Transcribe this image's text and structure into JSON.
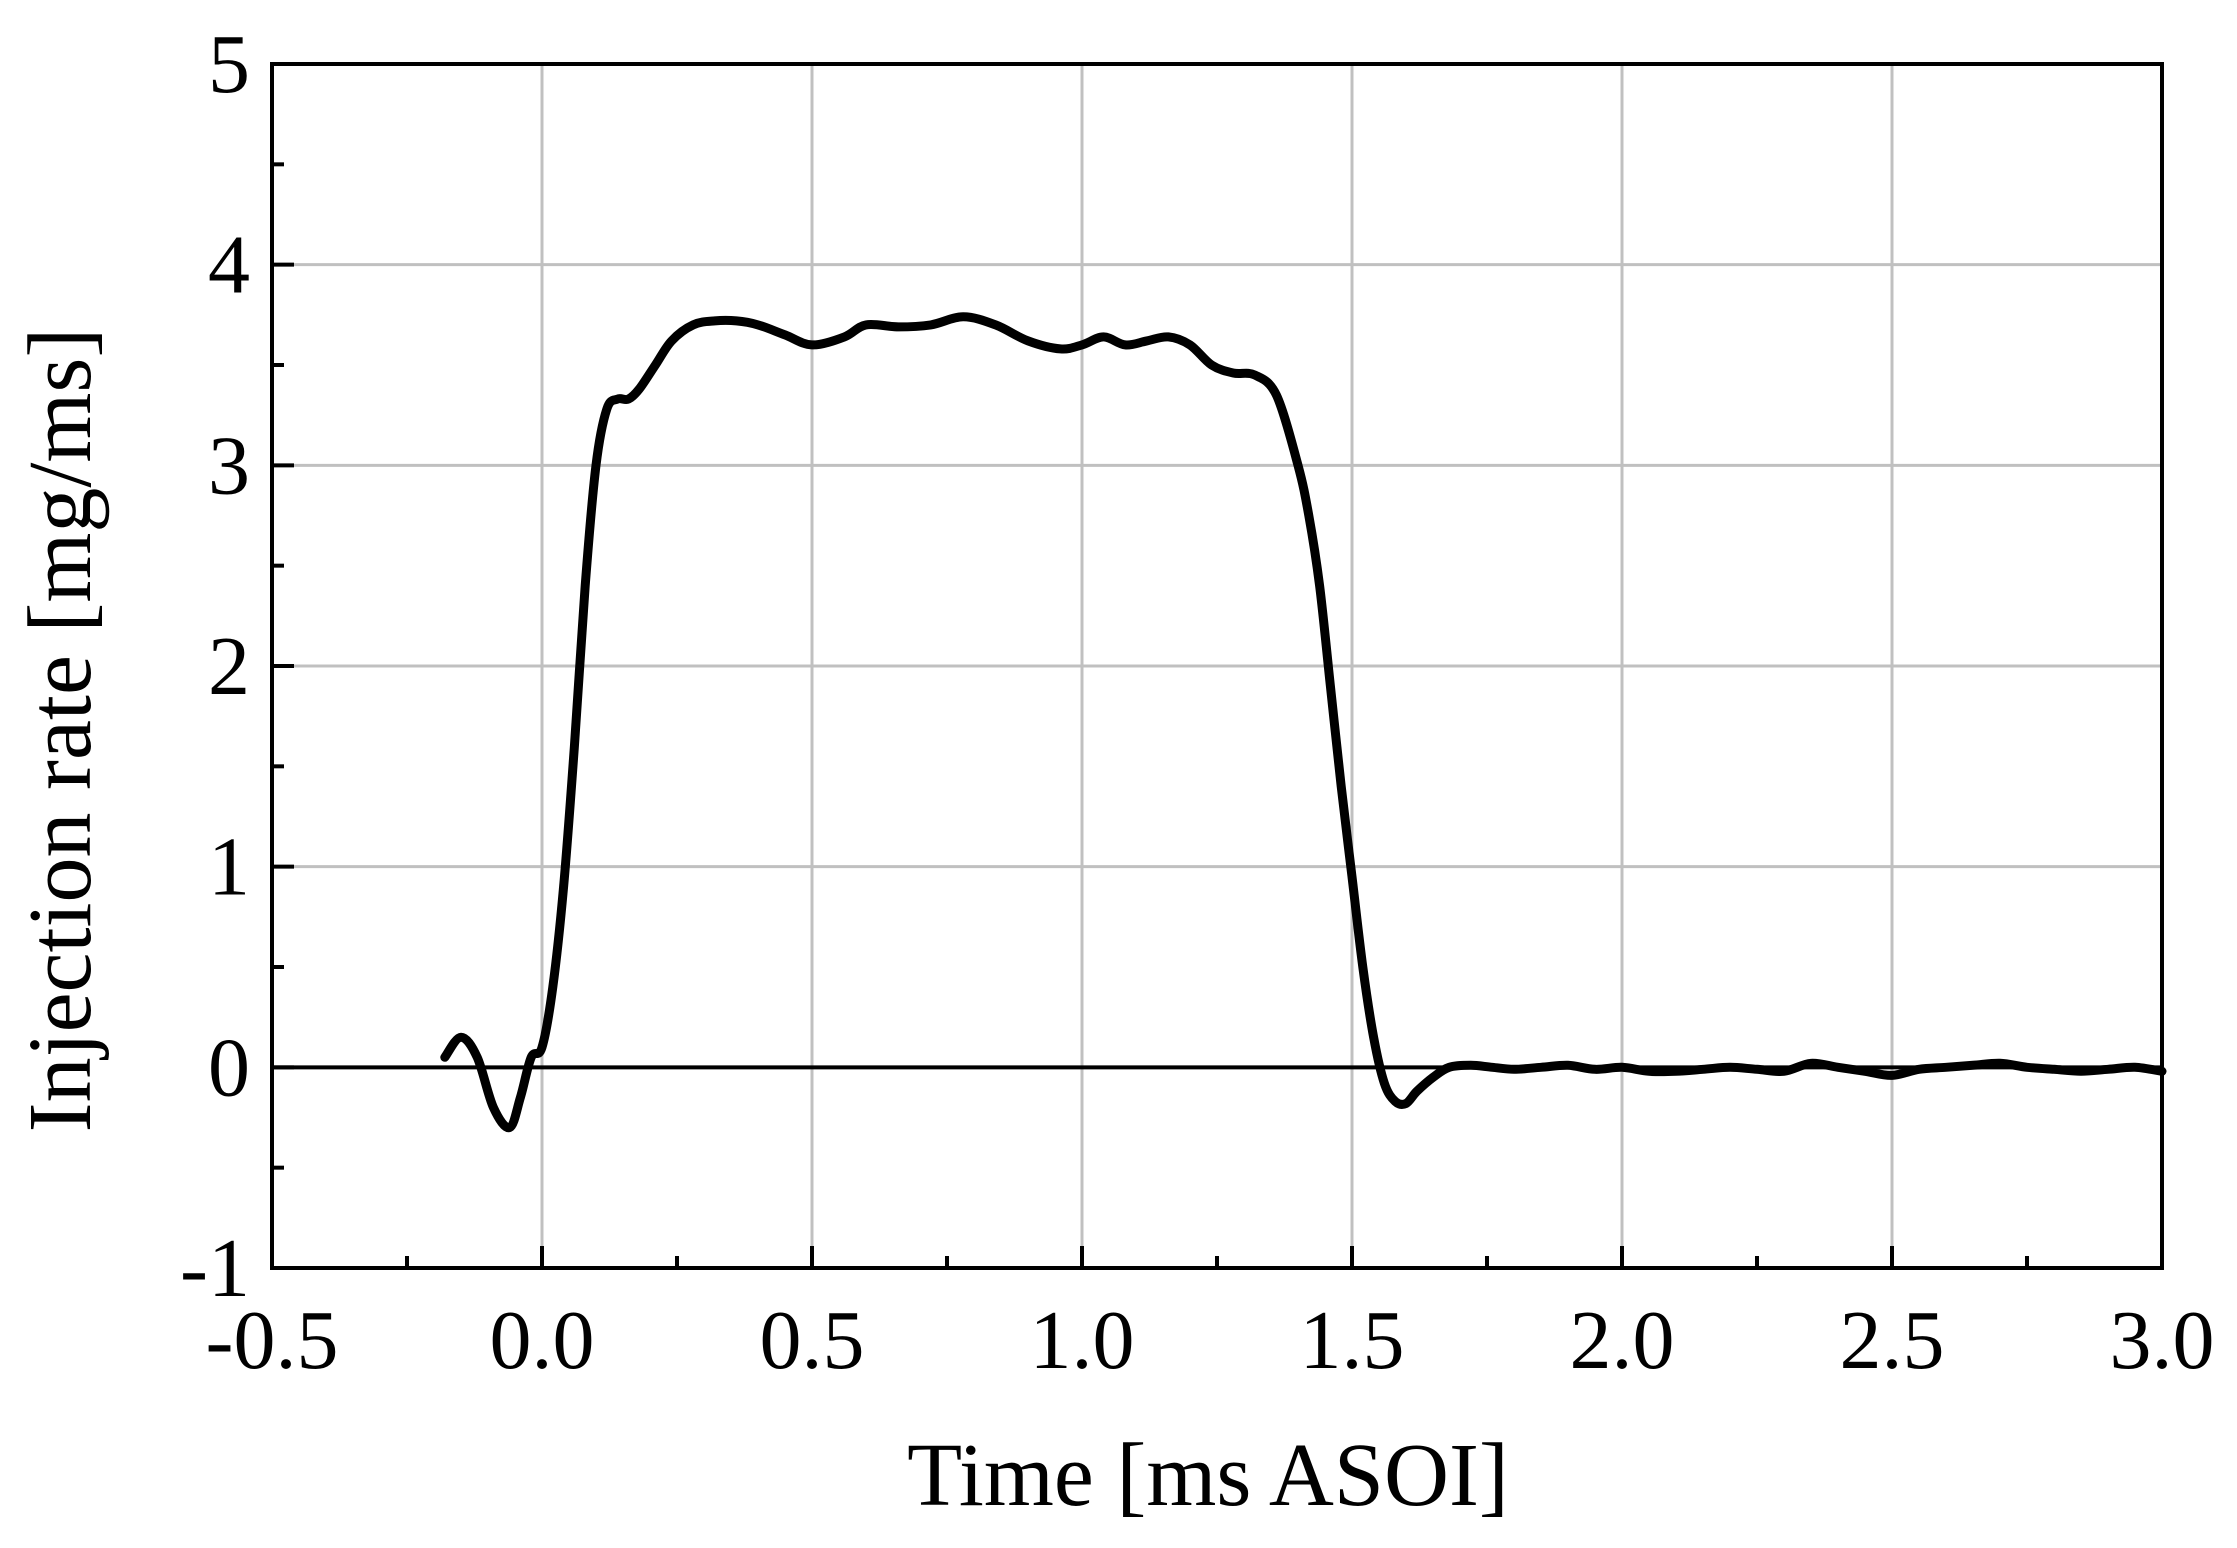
{
  "chart_data": {
    "type": "line",
    "title": "",
    "xlabel": "Time [ms ASOI]",
    "ylabel": "Injection rate [mg/ms]",
    "xlim": [
      -0.5,
      3.0
    ],
    "ylim": [
      -1,
      5
    ],
    "xticks": [
      -0.5,
      0.0,
      0.5,
      1.0,
      1.5,
      2.0,
      2.5,
      3.0
    ],
    "xtick_labels": [
      "-0.5",
      "0.0",
      "0.5",
      "1.0",
      "1.5",
      "2.0",
      "2.5",
      "3.0"
    ],
    "yticks": [
      -1,
      0,
      1,
      2,
      3,
      4,
      5
    ],
    "ytick_labels": [
      "-1",
      "0",
      "1",
      "2",
      "3",
      "4",
      "5"
    ],
    "grid": true,
    "reference_line_y": 0,
    "series_color": "#000000",
    "series": [
      {
        "x": [
          -0.18,
          -0.15,
          -0.12,
          -0.09,
          -0.06,
          -0.04,
          -0.02,
          0.0,
          0.02,
          0.04,
          0.06,
          0.08,
          0.1,
          0.12,
          0.14,
          0.16,
          0.18,
          0.21,
          0.24,
          0.28,
          0.32,
          0.36,
          0.4,
          0.45,
          0.5,
          0.56,
          0.6,
          0.66,
          0.72,
          0.78,
          0.84,
          0.9,
          0.96,
          1.0,
          1.04,
          1.08,
          1.12,
          1.16,
          1.2,
          1.24,
          1.28,
          1.32,
          1.36,
          1.4,
          1.42,
          1.44,
          1.46,
          1.48,
          1.5,
          1.52,
          1.54,
          1.56,
          1.58,
          1.6,
          1.62,
          1.65,
          1.68,
          1.72,
          1.76,
          1.8,
          1.85,
          1.9,
          1.95,
          2.0,
          2.05,
          2.1,
          2.15,
          2.2,
          2.25,
          2.3,
          2.35,
          2.4,
          2.45,
          2.5,
          2.55,
          2.6,
          2.65,
          2.7,
          2.75,
          2.8,
          2.85,
          2.9,
          2.95,
          3.0
        ],
        "y": [
          0.05,
          0.15,
          0.05,
          -0.2,
          -0.3,
          -0.15,
          0.05,
          0.1,
          0.4,
          0.9,
          1.6,
          2.4,
          3.0,
          3.28,
          3.33,
          3.33,
          3.38,
          3.5,
          3.62,
          3.7,
          3.72,
          3.72,
          3.7,
          3.65,
          3.6,
          3.64,
          3.7,
          3.69,
          3.7,
          3.74,
          3.7,
          3.62,
          3.58,
          3.6,
          3.64,
          3.6,
          3.62,
          3.64,
          3.6,
          3.5,
          3.46,
          3.45,
          3.35,
          3.0,
          2.75,
          2.4,
          1.9,
          1.4,
          0.95,
          0.5,
          0.15,
          -0.08,
          -0.17,
          -0.18,
          -0.12,
          -0.05,
          0.0,
          0.01,
          0.0,
          -0.01,
          0.0,
          0.01,
          -0.01,
          0.0,
          -0.02,
          -0.02,
          -0.01,
          0.0,
          -0.01,
          -0.02,
          0.02,
          0.0,
          -0.02,
          -0.04,
          -0.01,
          0.0,
          0.01,
          0.02,
          0.0,
          -0.01,
          -0.02,
          -0.01,
          0.0,
          -0.02
        ]
      }
    ]
  }
}
